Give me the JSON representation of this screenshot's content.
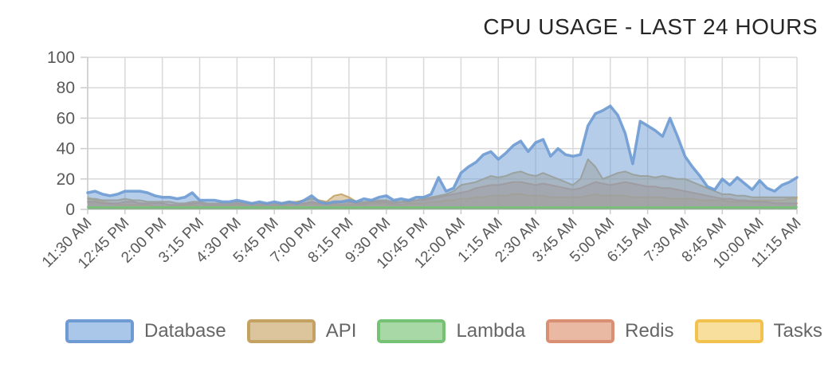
{
  "chart_data": {
    "type": "area",
    "title": "CPU USAGE - LAST 24 HOURS",
    "xlabel": "",
    "ylabel": "",
    "ylim": [
      0,
      100
    ],
    "yticks": [
      0,
      20,
      40,
      60,
      80,
      100
    ],
    "grid": true,
    "legend_position": "bottom",
    "x_tick_labels": [
      "11:30 AM",
      "12:45 PM",
      "2:00 PM",
      "3:15 PM",
      "4:30 PM",
      "5:45 PM",
      "7:00 PM",
      "8:15 PM",
      "9:30 PM",
      "10:45 PM",
      "12:00 AM",
      "1:15 AM",
      "2:30 AM",
      "3:45 AM",
      "5:00 AM",
      "6:15 AM",
      "7:30 AM",
      "8:45 AM",
      "10:00 AM",
      "11:15 AM"
    ],
    "tick_every": 5,
    "fill_opacity": 0.5,
    "grid_color": "#d9d9d9",
    "axis_color": "#cccccc",
    "label_color": "#595959",
    "title_color": "#262626",
    "draw_order": [
      "Tasks",
      "Redis",
      "API",
      "Database",
      "Lambda"
    ],
    "series": [
      {
        "name": "Database",
        "color": "#6e9bd3",
        "swatch_fill": "#aac6e8",
        "line_width": 3.5,
        "values": [
          11,
          12,
          10,
          9,
          10,
          12,
          12,
          12,
          11,
          9,
          8,
          8,
          7,
          8,
          11,
          6,
          6,
          6,
          5,
          5,
          6,
          5,
          4,
          5,
          4,
          5,
          4,
          5,
          4,
          6,
          9,
          5,
          4,
          5,
          5,
          6,
          5,
          7,
          6,
          8,
          9,
          6,
          7,
          6,
          8,
          8,
          10,
          21,
          12,
          14,
          24,
          28,
          31,
          36,
          38,
          33,
          37,
          42,
          45,
          38,
          44,
          46,
          35,
          40,
          36,
          35,
          36,
          55,
          63,
          65,
          68,
          62,
          50,
          30,
          58,
          55,
          52,
          48,
          60,
          48,
          35,
          28,
          22,
          15,
          13,
          20,
          16,
          21,
          17,
          13,
          19,
          14,
          12,
          16,
          18,
          21
        ]
      },
      {
        "name": "API",
        "color": "#c3a262",
        "swatch_fill": "#dcc49c",
        "line_width": 2,
        "values": [
          7,
          7,
          6,
          6,
          6,
          7,
          6,
          6,
          5,
          5,
          5,
          5,
          4,
          4,
          5,
          5,
          4,
          4,
          4,
          4,
          5,
          4,
          4,
          4,
          4,
          4,
          4,
          5,
          5,
          6,
          7,
          6,
          5,
          9,
          10,
          8,
          5,
          5,
          5,
          6,
          6,
          5,
          5,
          6,
          6,
          7,
          8,
          9,
          10,
          12,
          16,
          17,
          18,
          20,
          22,
          21,
          22,
          24,
          25,
          23,
          22,
          24,
          22,
          20,
          18,
          16,
          20,
          33,
          28,
          20,
          22,
          24,
          25,
          23,
          22,
          22,
          21,
          22,
          21,
          20,
          20,
          18,
          16,
          14,
          12,
          10,
          10,
          9,
          9,
          8,
          8,
          8,
          8,
          8,
          8,
          8
        ]
      },
      {
        "name": "Lambda",
        "color": "#76c274",
        "swatch_fill": "#a9d8a7",
        "line_width": 2,
        "values": [
          1.5,
          1.5,
          1.5,
          1.5,
          1.5,
          1.5,
          1.5,
          1.5,
          1.5,
          1.5,
          1.5,
          1.5,
          1.5,
          1.5,
          1.5,
          1.5,
          1.5,
          1.5,
          1.5,
          1.5,
          1.5,
          1.5,
          1.5,
          1.5,
          1.5,
          1.5,
          1.5,
          1.5,
          1.5,
          1.5,
          1.5,
          1.5,
          1.5,
          1.5,
          1.5,
          1.5,
          1.5,
          1.5,
          1.5,
          1.5,
          1.5,
          1.5,
          1.5,
          1.5,
          1.5,
          1.5,
          1.5,
          1.5,
          1.5,
          1.5,
          1.5,
          1.5,
          1.5,
          1.5,
          1.5,
          1.5,
          1.5,
          1.5,
          1.5,
          1.5,
          1.5,
          1.5,
          1.5,
          1.5,
          1.5,
          1.5,
          1.5,
          1.5,
          1.5,
          1.5,
          1.5,
          1.5,
          1.5,
          1.5,
          1.5,
          1.5,
          1.5,
          1.5,
          1.5,
          1.5,
          1.5,
          1.5,
          1.5,
          1.5,
          1.5,
          1.5,
          1.5,
          1.5,
          1.5,
          1.5,
          1.5,
          1.5,
          1.5,
          1.5,
          1.5,
          1.5
        ]
      },
      {
        "name": "Redis",
        "color": "#d98f73",
        "swatch_fill": "#eab9a4",
        "line_width": 2,
        "values": [
          5,
          5,
          4,
          4,
          4,
          5,
          5,
          4,
          4,
          4,
          4,
          3,
          3,
          3,
          4,
          4,
          3,
          3,
          3,
          3,
          4,
          3,
          3,
          3,
          3,
          3,
          3,
          4,
          4,
          4,
          5,
          4,
          4,
          4,
          5,
          5,
          4,
          4,
          5,
          5,
          5,
          4,
          5,
          5,
          6,
          6,
          7,
          8,
          9,
          10,
          11,
          12,
          14,
          15,
          16,
          16,
          17,
          18,
          18,
          17,
          16,
          17,
          16,
          15,
          14,
          13,
          14,
          16,
          18,
          17,
          16,
          17,
          18,
          17,
          16,
          15,
          15,
          14,
          14,
          13,
          12,
          11,
          10,
          9,
          8,
          7,
          7,
          6,
          6,
          5,
          5,
          5,
          4,
          4,
          4,
          4
        ]
      },
      {
        "name": "Tasks",
        "color": "#f2c24e",
        "swatch_fill": "#f8df9d",
        "line_width": 2,
        "values": [
          8,
          6,
          5,
          4,
          3,
          3,
          3,
          3,
          3,
          2,
          2,
          2,
          2,
          3,
          3,
          2,
          2,
          2,
          2,
          2,
          3,
          2,
          2,
          2,
          2,
          2,
          2,
          3,
          3,
          3,
          4,
          3,
          3,
          3,
          3,
          3,
          3,
          3,
          4,
          4,
          4,
          3,
          3,
          4,
          4,
          4,
          5,
          5,
          6,
          6,
          7,
          7,
          8,
          8,
          9,
          9,
          9,
          10,
          10,
          9,
          9,
          9,
          8,
          8,
          8,
          8,
          8,
          9,
          10,
          9,
          9,
          9,
          9,
          8,
          8,
          8,
          8,
          8,
          7,
          7,
          7,
          7,
          6,
          6,
          6,
          6,
          5,
          5,
          5,
          6,
          6,
          6,
          6,
          6,
          7,
          7
        ]
      }
    ]
  }
}
